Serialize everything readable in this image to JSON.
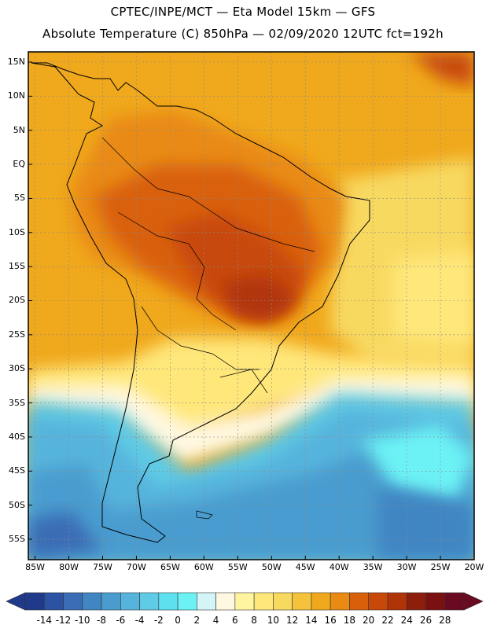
{
  "header": {
    "line1": "CPTEC/INPE/MCT —  Eta Model 15km — GFS",
    "line2": "Absolute Temperature (C) 850hPa — 02/09/2020 12UTC fct=192h"
  },
  "map": {
    "lat_ticks": [
      "15N",
      "10N",
      "5N",
      "EQ",
      "5S",
      "10S",
      "15S",
      "20S",
      "25S",
      "30S",
      "35S",
      "40S",
      "45S",
      "50S",
      "55S"
    ],
    "lon_ticks": [
      "85W",
      "80W",
      "75W",
      "70W",
      "65W",
      "60W",
      "55W",
      "50W",
      "45W",
      "40W",
      "35W",
      "30W",
      "25W",
      "20W"
    ],
    "lat_range": [
      -58,
      16.5
    ],
    "lon_range": [
      -86,
      -20
    ],
    "gridlines": "dotted"
  },
  "colorbar": {
    "labels": [
      "-14",
      "-12",
      "-10",
      "-8",
      "-6",
      "-4",
      "-2",
      "0",
      "2",
      "4",
      "6",
      "8",
      "10",
      "12",
      "14",
      "16",
      "18",
      "20",
      "22",
      "24",
      "26",
      "28"
    ],
    "colors": [
      "#1f3a8a",
      "#2b52a3",
      "#3a6db5",
      "#3f86c3",
      "#4a9ccf",
      "#56b4dc",
      "#5fcbe6",
      "#5ee0ee",
      "#6cf2f5",
      "#d4f4f8",
      "#fff8e0",
      "#fff5a0",
      "#ffe77a",
      "#f8d960",
      "#f5c33b",
      "#f0a81c",
      "#e98a12",
      "#d9600a",
      "#c8480a",
      "#b13408",
      "#8e1e0c",
      "#7a1010",
      "#6a0a20"
    ]
  }
}
